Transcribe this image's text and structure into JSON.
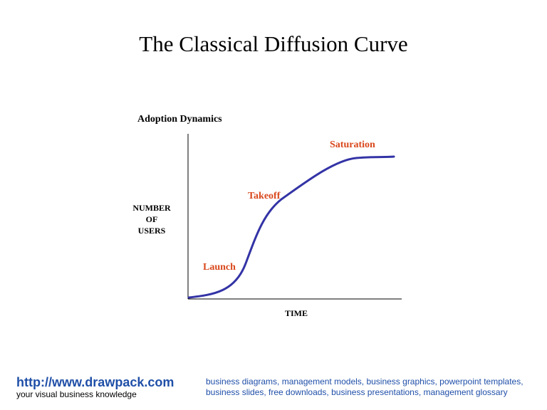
{
  "title": "The Classical Diffusion Curve",
  "diagram": {
    "subtitle": "Adoption Dynamics",
    "y_axis_label": [
      "NUMBER",
      "OF",
      "USERS"
    ],
    "x_axis_label": "TIME",
    "stages": {
      "launch": "Launch",
      "takeoff": "Takeoff",
      "saturation": "Saturation"
    },
    "colors": {
      "curve": "#3333a6",
      "stage_label": "#d9481c",
      "axis": "#000000"
    }
  },
  "footer": {
    "url": "http://www.drawpack.com",
    "tagline": "your visual business knowledge",
    "description": "business diagrams, management models, business graphics, powerpoint templates, business slides, free downloads, business presentations, management glossary"
  }
}
